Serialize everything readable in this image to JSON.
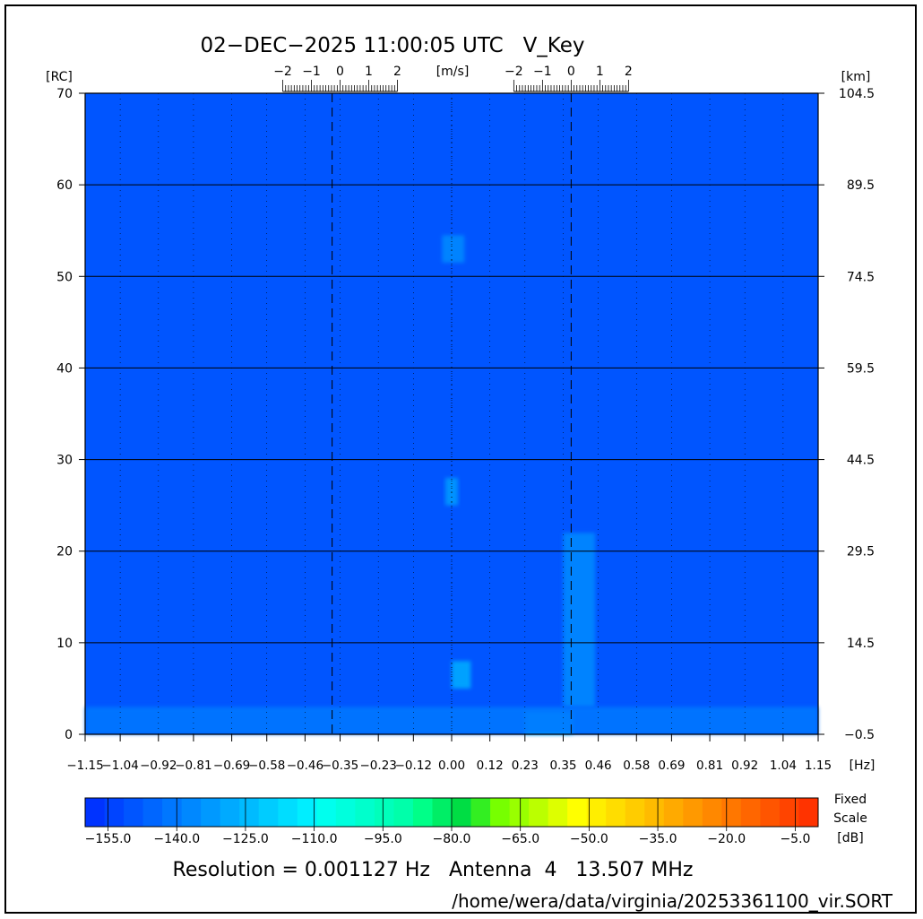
{
  "header": {
    "title": "02-DEC-2025 11:00:05 UTC   V_Key"
  },
  "chart_data": {
    "type": "heatmap",
    "title": "02-DEC-2025 11:00:05 UTC   V_Key",
    "x_axis": {
      "unit": "[Hz]",
      "range": [
        -1.15,
        1.15
      ],
      "ticks": [
        -1.15,
        -1.04,
        -0.92,
        -0.81,
        -0.69,
        -0.58,
        -0.46,
        -0.35,
        -0.23,
        -0.12,
        0.0,
        0.12,
        0.23,
        0.35,
        0.46,
        0.58,
        0.69,
        0.81,
        0.92,
        1.04,
        1.15
      ],
      "tick_labels": [
        "-1.15",
        "-1.04",
        "-0.92",
        "-0.81",
        "-0.69",
        "-0.58",
        "-0.46",
        "-0.35",
        "-0.23",
        "-0.12",
        "0.00",
        "0.12",
        "0.23",
        "0.35",
        "0.46",
        "0.58",
        "0.69",
        "0.81",
        "0.92",
        "1.04",
        "1.15"
      ]
    },
    "y_axis_left": {
      "unit": "[RC]",
      "range": [
        0,
        70
      ],
      "ticks": [
        0,
        10,
        20,
        30,
        40,
        50,
        60,
        70
      ],
      "tick_labels": [
        "0",
        "10",
        "20",
        "30",
        "40",
        "50",
        "60",
        "70"
      ]
    },
    "y_axis_right": {
      "unit": "[km]",
      "tick_labels": [
        "-0.5",
        "14.5",
        "29.5",
        "44.5",
        "59.5",
        "74.5",
        "89.5",
        "104.5"
      ]
    },
    "top_axis": {
      "unit": "[m/s]",
      "scales": [
        {
          "center_hz": -0.35,
          "tick_labels": [
            "-2",
            "-1",
            "0",
            "1",
            "2"
          ]
        },
        {
          "center_hz": 0.375,
          "tick_labels": [
            "-2",
            "-1",
            "0",
            "1",
            "2"
          ]
        }
      ]
    },
    "bragg_lines_hz": [
      -0.375,
      0.375
    ],
    "grid": true,
    "colorbar": {
      "range": [
        -160,
        0
      ],
      "unit": "[dB]",
      "label_lines": [
        "Fixed",
        "Scale"
      ],
      "ticks": [
        -155.0,
        -140.0,
        -125.0,
        -110.0,
        -95.0,
        -80.0,
        -65.0,
        -50.0,
        -35.0,
        -20.0,
        -5.0
      ],
      "tick_labels": [
        "-155.0",
        "-140.0",
        "-125.0",
        "-110.0",
        "-95.0",
        "-80.0",
        "-65.0",
        "-50.0",
        "-35.0",
        "-20.0",
        "-5.0"
      ],
      "colors": [
        "#0033ff",
        "#0044ff",
        "#0055ff",
        "#0066ff",
        "#0077ff",
        "#0088ff",
        "#0099ff",
        "#00aaff",
        "#00bbff",
        "#00ccff",
        "#00ddff",
        "#00eeff",
        "#00ffee",
        "#00ffdd",
        "#00ffcc",
        "#00ffbb",
        "#00ffaa",
        "#00ff88",
        "#00ee66",
        "#00dd44",
        "#33ee22",
        "#77ff00",
        "#99ff00",
        "#bbff00",
        "#ddff00",
        "#ffff00",
        "#ffee00",
        "#ffdd00",
        "#ffcc00",
        "#ffbb00",
        "#ffaa00",
        "#ff9900",
        "#ff8800",
        "#ff7700",
        "#ff6600",
        "#ff5500",
        "#ff4400",
        "#ff3300"
      ]
    },
    "background_level_db": -150,
    "features": [
      {
        "x": [
          -0.03,
          0.04
        ],
        "y": [
          51.5,
          54.5
        ],
        "level_db": -135
      },
      {
        "x": [
          -0.02,
          0.02
        ],
        "y": [
          25,
          28
        ],
        "level_db": -133
      },
      {
        "x": [
          0.0,
          0.06
        ],
        "y": [
          5,
          8
        ],
        "level_db": -130
      },
      {
        "x": [
          0.35,
          0.45
        ],
        "y": [
          3,
          22
        ],
        "level_db": -135
      },
      {
        "x": [
          0.23,
          0.38
        ],
        "y": [
          0,
          2.5
        ],
        "level_db": -118
      },
      {
        "x": [
          -1.15,
          1.15
        ],
        "y": [
          0,
          3
        ],
        "level_db": -140
      }
    ]
  },
  "footer": {
    "resolution_text": "Resolution = 0.001127 Hz   Antenna  4   13.507 MHz",
    "file_path": "/home/wera/data/virginia/20253361100_vir.SORT"
  }
}
